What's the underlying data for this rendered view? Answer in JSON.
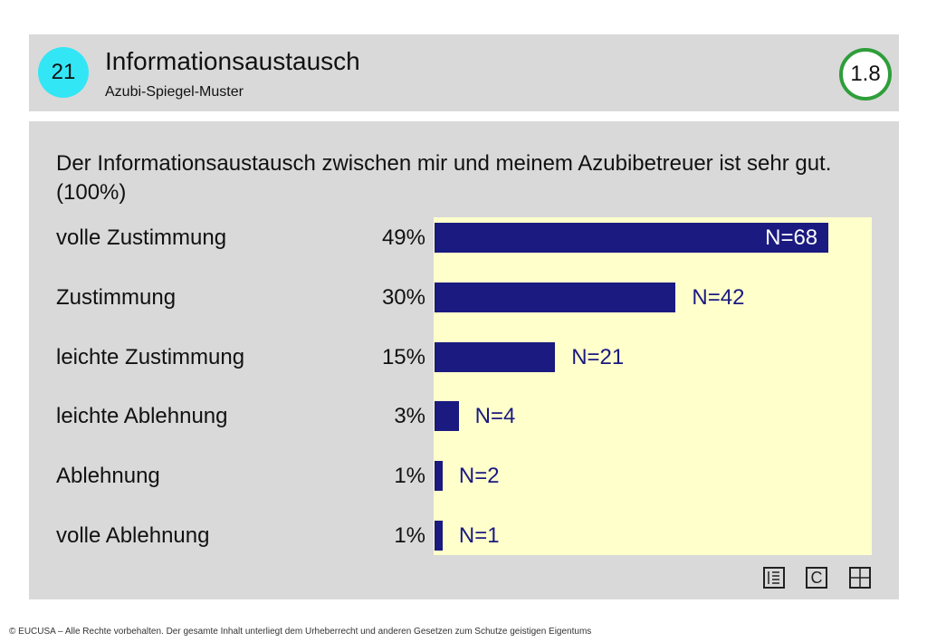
{
  "header": {
    "number": "21",
    "title": "Informationsaustausch",
    "subtitle": "Azubi-Spiegel-Muster",
    "score": "1.8"
  },
  "question": "Der Informationsaustausch zwischen mir und meinem Azubibetreuer ist sehr gut. (100%)",
  "chart_data": {
    "type": "bar",
    "orientation": "horizontal",
    "categories": [
      "volle Zustimmung",
      "Zustimmung",
      "leichte Zustimmung",
      "leichte Ablehnung",
      "Ablehnung",
      "volle Ablehnung"
    ],
    "values": [
      49,
      30,
      15,
      3,
      1,
      1
    ],
    "value_labels": [
      "49%",
      "30%",
      "15%",
      "3%",
      "1%",
      "1%"
    ],
    "counts": [
      "N=68",
      "N=42",
      "N=21",
      "N=4",
      "N=2",
      "N=1"
    ],
    "unit": "%",
    "bar_color": "#1a1a80",
    "background_color": "#ffffcc"
  },
  "footer": "© EUCUSA – Alle Rechte vorbehalten. Der gesamte Inhalt unterliegt dem Urheberrecht und anderen Gesetzen zum Schutze geistigen Eigentums",
  "toolbar": {
    "icons": [
      "list-icon",
      "c-icon",
      "grid-icon"
    ],
    "c_label": "C"
  },
  "colors": {
    "badge": "#33e6f5",
    "score_ring": "#2e9e3a",
    "panel": "#d9d9d9"
  }
}
